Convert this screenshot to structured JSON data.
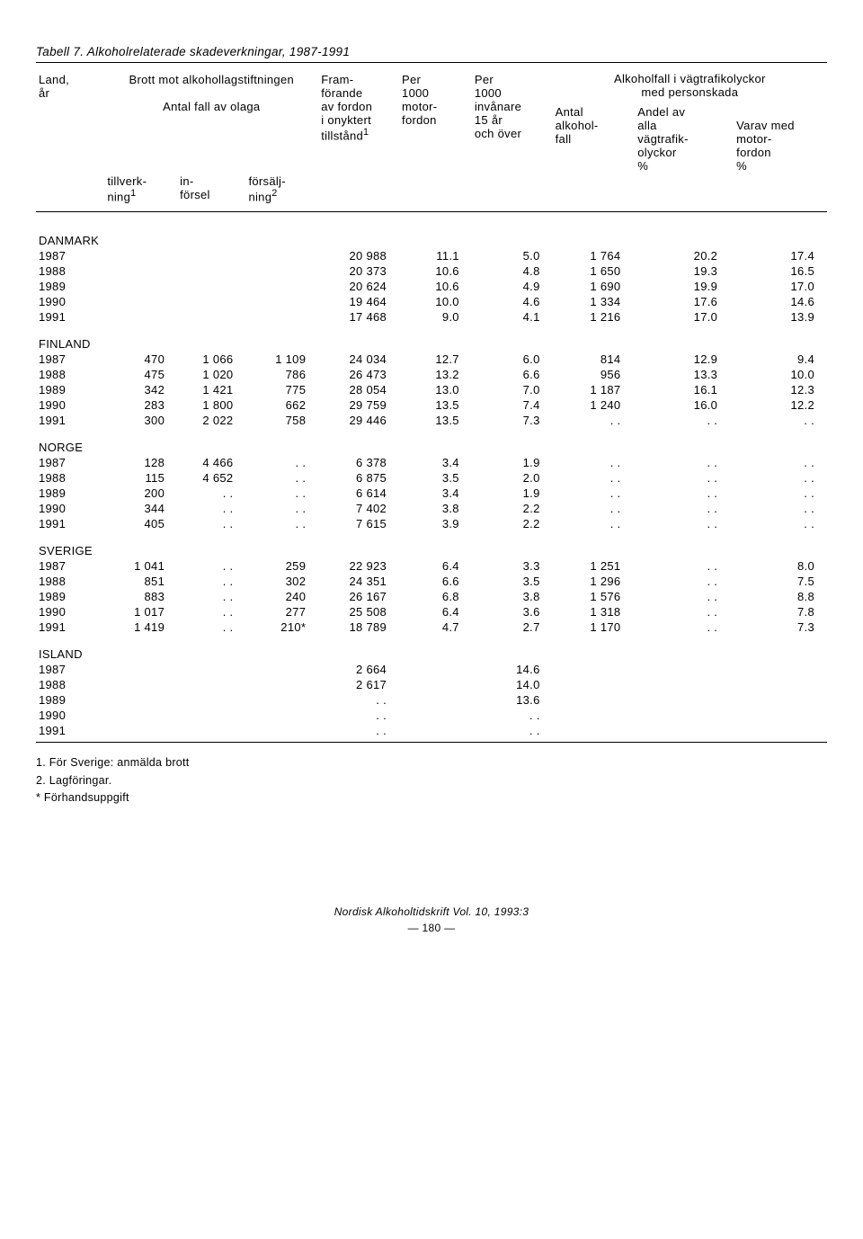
{
  "title": "Tabell 7. Alkoholrelaterade skadeverkningar, 1987-1991",
  "header": {
    "col0_a": "Land,",
    "col0_b": "år",
    "brott": "Brott mot alkohollagstiftningen",
    "antal_olaga": "Antal fall av olaga",
    "tillverk_a": "tillverk-",
    "tillverk_b": "ning",
    "tillverk_sup": "1",
    "in_a": "in-",
    "in_b": "försel",
    "forsalj_a": "försälj-",
    "forsalj_b": "ning",
    "forsalj_sup": "2",
    "fram_a": "Fram-",
    "fram_b": "förande",
    "fram_c": "av fordon",
    "fram_d": "i onyktert",
    "fram_e": "tillstånd",
    "fram_sup": "1",
    "per1000_a": "Per",
    "per1000_b": "1000",
    "per1000_c": "motor-",
    "per1000_d": "fordon",
    "per1000inv_a": "Per",
    "per1000inv_b": "1000",
    "per1000inv_c": "invånare",
    "per1000inv_d": "15 år",
    "per1000inv_e": "och över",
    "alkfall": "Alkoholfall i vägtrafikolyckor",
    "medperson": "med personskada",
    "antal_a": "Antal",
    "antal_b": "alkohol-",
    "antal_c": "fall",
    "andel_a": "Andel av",
    "andel_b": "alla",
    "andel_c": "vägtrafik-",
    "andel_d": "olyckor",
    "andel_e": "%",
    "varav_a": "Varav med",
    "varav_b": "motor-",
    "varav_c": "fordon",
    "varav_d": "%"
  },
  "sections": [
    {
      "name": "DANMARK",
      "rows": [
        {
          "y": "1987",
          "a": "",
          "b": "",
          "c": "",
          "d": "20 988",
          "e": "11.1",
          "f": "5.0",
          "g": "1 764",
          "h": "20.2",
          "i": "17.4"
        },
        {
          "y": "1988",
          "a": "",
          "b": "",
          "c": "",
          "d": "20 373",
          "e": "10.6",
          "f": "4.8",
          "g": "1 650",
          "h": "19.3",
          "i": "16.5"
        },
        {
          "y": "1989",
          "a": "",
          "b": "",
          "c": "",
          "d": "20 624",
          "e": "10.6",
          "f": "4.9",
          "g": "1 690",
          "h": "19.9",
          "i": "17.0"
        },
        {
          "y": "1990",
          "a": "",
          "b": "",
          "c": "",
          "d": "19 464",
          "e": "10.0",
          "f": "4.6",
          "g": "1 334",
          "h": "17.6",
          "i": "14.6"
        },
        {
          "y": "1991",
          "a": "",
          "b": "",
          "c": "",
          "d": "17 468",
          "e": "9.0",
          "f": "4.1",
          "g": "1 216",
          "h": "17.0",
          "i": "13.9"
        }
      ]
    },
    {
      "name": "FINLAND",
      "rows": [
        {
          "y": "1987",
          "a": "470",
          "b": "1 066",
          "c": "1 109",
          "d": "24 034",
          "e": "12.7",
          "f": "6.0",
          "g": "814",
          "h": "12.9",
          "i": "9.4"
        },
        {
          "y": "1988",
          "a": "475",
          "b": "1 020",
          "c": "786",
          "d": "26 473",
          "e": "13.2",
          "f": "6.6",
          "g": "956",
          "h": "13.3",
          "i": "10.0"
        },
        {
          "y": "1989",
          "a": "342",
          "b": "1 421",
          "c": "775",
          "d": "28 054",
          "e": "13.0",
          "f": "7.0",
          "g": "1 187",
          "h": "16.1",
          "i": "12.3"
        },
        {
          "y": "1990",
          "a": "283",
          "b": "1 800",
          "c": "662",
          "d": "29 759",
          "e": "13.5",
          "f": "7.4",
          "g": "1 240",
          "h": "16.0",
          "i": "12.2"
        },
        {
          "y": "1991",
          "a": "300",
          "b": "2 022",
          "c": "758",
          "d": "29 446",
          "e": "13.5",
          "f": "7.3",
          "g": ". .",
          "h": ". .",
          "i": ". ."
        }
      ]
    },
    {
      "name": "NORGE",
      "rows": [
        {
          "y": "1987",
          "a": "128",
          "b": "4 466",
          "c": ". .",
          "d": "6 378",
          "e": "3.4",
          "f": "1.9",
          "g": ". .",
          "h": ". .",
          "i": ". ."
        },
        {
          "y": "1988",
          "a": "115",
          "b": "4 652",
          "c": ". .",
          "d": "6 875",
          "e": "3.5",
          "f": "2.0",
          "g": ". .",
          "h": ". .",
          "i": ". ."
        },
        {
          "y": "1989",
          "a": "200",
          "b": ". .",
          "c": ". .",
          "d": "6 614",
          "e": "3.4",
          "f": "1.9",
          "g": ". .",
          "h": ". .",
          "i": ". ."
        },
        {
          "y": "1990",
          "a": "344",
          "b": ". .",
          "c": ". .",
          "d": "7 402",
          "e": "3.8",
          "f": "2.2",
          "g": ". .",
          "h": ". .",
          "i": ". ."
        },
        {
          "y": "1991",
          "a": "405",
          "b": ". .",
          "c": ". .",
          "d": "7 615",
          "e": "3.9",
          "f": "2.2",
          "g": ". .",
          "h": ". .",
          "i": ". ."
        }
      ]
    },
    {
      "name": "SVERIGE",
      "rows": [
        {
          "y": "1987",
          "a": "1 041",
          "b": ". .",
          "c": "259",
          "d": "22 923",
          "e": "6.4",
          "f": "3.3",
          "g": "1 251",
          "h": ". .",
          "i": "8.0"
        },
        {
          "y": "1988",
          "a": "851",
          "b": ". .",
          "c": "302",
          "d": "24 351",
          "e": "6.6",
          "f": "3.5",
          "g": "1 296",
          "h": ". .",
          "i": "7.5"
        },
        {
          "y": "1989",
          "a": "883",
          "b": ". .",
          "c": "240",
          "d": "26 167",
          "e": "6.8",
          "f": "3.8",
          "g": "1 576",
          "h": ". .",
          "i": "8.8"
        },
        {
          "y": "1990",
          "a": "1 017",
          "b": ". .",
          "c": "277",
          "d": "25 508",
          "e": "6.4",
          "f": "3.6",
          "g": "1 318",
          "h": ". .",
          "i": "7.8"
        },
        {
          "y": "1991",
          "a": "1 419",
          "b": ". .",
          "c": "210*",
          "d": "18 789",
          "e": "4.7",
          "f": "2.7",
          "g": "1 170",
          "h": ". .",
          "i": "7.3"
        }
      ]
    },
    {
      "name": "ISLAND",
      "rows": [
        {
          "y": "1987",
          "a": "",
          "b": "",
          "c": "",
          "d": "2 664",
          "e": "",
          "f": "14.6",
          "g": "",
          "h": "",
          "i": ""
        },
        {
          "y": "1988",
          "a": "",
          "b": "",
          "c": "",
          "d": "2 617",
          "e": "",
          "f": "14.0",
          "g": "",
          "h": "",
          "i": ""
        },
        {
          "y": "1989",
          "a": "",
          "b": "",
          "c": "",
          "d": ". .",
          "e": "",
          "f": "13.6",
          "g": "",
          "h": "",
          "i": ""
        },
        {
          "y": "1990",
          "a": "",
          "b": "",
          "c": "",
          "d": ". .",
          "e": "",
          "f": ". .",
          "g": "",
          "h": "",
          "i": ""
        },
        {
          "y": "1991",
          "a": "",
          "b": "",
          "c": "",
          "d": ". .",
          "e": "",
          "f": ". .",
          "g": "",
          "h": "",
          "i": ""
        }
      ]
    }
  ],
  "footnotes": {
    "f1": "1. För Sverige: anmälda brott",
    "f2": "2. Lagföringar.",
    "f3": "* Förhandsuppgift"
  },
  "footer": {
    "journal": "Nordisk Alkoholtidskrift Vol. 10, 1993:3",
    "page": "—  180  —"
  }
}
